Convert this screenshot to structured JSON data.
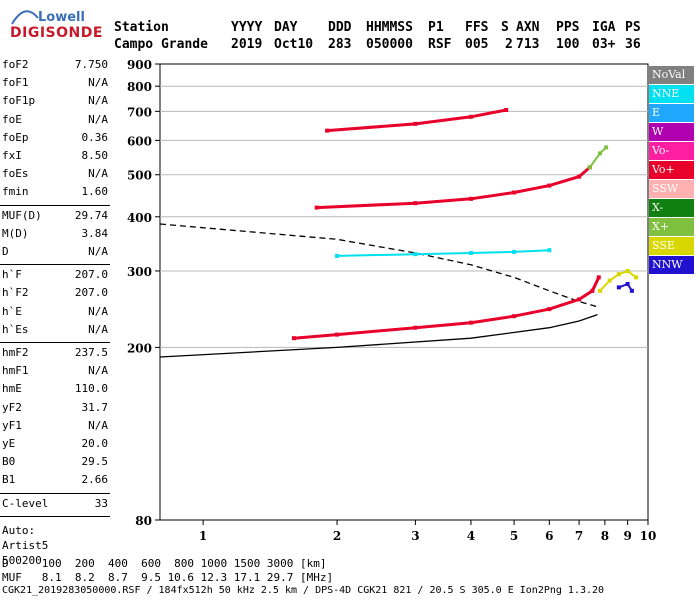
{
  "logo": {
    "line1": "Lowell",
    "line2": "DIGISONDE"
  },
  "header": {
    "row1": [
      "Station",
      "YYYY",
      "DAY",
      "DDD",
      "HHMMSS",
      "P1",
      "FFS",
      "S",
      "AXN",
      "PPS",
      "IGA",
      "PS"
    ],
    "row2": [
      "Campo Grande",
      "2019",
      "Oct10",
      "283",
      "050000",
      "RSF",
      "005",
      "2",
      "713",
      "100",
      "03+",
      "36"
    ]
  },
  "params": {
    "group1": [
      {
        "k": "foF2",
        "v": "7.750"
      },
      {
        "k": "foF1",
        "v": "N/A"
      },
      {
        "k": "foF1p",
        "v": "N/A"
      },
      {
        "k": "foE",
        "v": "N/A"
      },
      {
        "k": "foEp",
        "v": "0.36"
      },
      {
        "k": "fxI",
        "v": "8.50"
      },
      {
        "k": "foEs",
        "v": "N/A"
      },
      {
        "k": "fmin",
        "v": "1.60"
      }
    ],
    "group2": [
      {
        "k": "MUF(D)",
        "v": "29.74"
      },
      {
        "k": "M(D)",
        "v": "3.84"
      },
      {
        "k": "D",
        "v": "N/A"
      }
    ],
    "group3": [
      {
        "k": "h`F",
        "v": "207.0"
      },
      {
        "k": "h`F2",
        "v": "207.0"
      },
      {
        "k": "h`E",
        "v": "N/A"
      },
      {
        "k": "h`Es",
        "v": "N/A"
      }
    ],
    "group4": [
      {
        "k": "hmF2",
        "v": "237.5"
      },
      {
        "k": "hmF1",
        "v": "N/A"
      },
      {
        "k": "hmE",
        "v": "110.0"
      },
      {
        "k": "yF2",
        "v": "31.7"
      },
      {
        "k": "yF1",
        "v": "N/A"
      },
      {
        "k": "yE",
        "v": "20.0"
      },
      {
        "k": "B0",
        "v": "29.5"
      },
      {
        "k": "B1",
        "v": "2.66"
      }
    ],
    "group5": [
      {
        "k": "C-level",
        "v": "33"
      }
    ],
    "extra": [
      "Auto:",
      "Artist5",
      "500200"
    ]
  },
  "legend": [
    {
      "label": "NoVal",
      "color": "#808080"
    },
    {
      "label": "NNE",
      "color": "#00e0f0"
    },
    {
      "label": "E",
      "color": "#20a8ff"
    },
    {
      "label": "W",
      "color": "#b000b0"
    },
    {
      "label": "Vo-",
      "color": "#ff1fa0"
    },
    {
      "label": "Vo+",
      "color": "#e8002a"
    },
    {
      "label": "SSW",
      "color": "#ffb0b0"
    },
    {
      "label": "X-",
      "color": "#108010"
    },
    {
      "label": "X+",
      "color": "#80c040"
    },
    {
      "label": "SSE",
      "color": "#d8d800"
    },
    {
      "label": "NNW",
      "color": "#2010d0"
    }
  ],
  "bottom": {
    "d_row": "D     100  200  400  600  800 1000 1500 3000 [km]",
    "muf_row": "MUF   8.1  8.2  8.7  9.5 10.6 12.3 17.1 29.7 [MHz]",
    "footer": "CGK21_2019283050000.RSF / 184fx512h 50 kHz 2.5 km / DPS-4D CGK21 821 / 20.5 S 305.0 E Ion2Png 1.3.20"
  },
  "chart_data": {
    "type": "scatter",
    "xlim": [
      0.8,
      10
    ],
    "ylim": [
      80,
      900
    ],
    "x_ticks": [
      1,
      2,
      3,
      4,
      5,
      6,
      7,
      8,
      9,
      10
    ],
    "y_ticks": [
      80,
      200,
      300,
      400,
      500,
      600,
      700,
      800,
      900
    ],
    "y_scale": "log",
    "grid": "y-only",
    "legend_position": "right",
    "series": [
      {
        "name": "Vo+",
        "color": "#e8002a",
        "points": [
          [
            1.6,
            210
          ],
          [
            2,
            214
          ],
          [
            3,
            222
          ],
          [
            4,
            228
          ],
          [
            5,
            236
          ],
          [
            6,
            245
          ],
          [
            7,
            258
          ],
          [
            7.5,
            270
          ],
          [
            7.75,
            290
          ]
        ]
      },
      {
        "name": "Vo+",
        "color": "#e8002a",
        "points": [
          [
            1.8,
            420
          ],
          [
            3,
            430
          ],
          [
            4,
            440
          ],
          [
            5,
            455
          ],
          [
            6,
            472
          ],
          [
            7,
            495
          ],
          [
            7.4,
            520
          ]
        ]
      },
      {
        "name": "Vo+",
        "color": "#e8002a",
        "points": [
          [
            1.9,
            632
          ],
          [
            3,
            655
          ],
          [
            4,
            680
          ],
          [
            4.8,
            705
          ]
        ]
      },
      {
        "name": "X+",
        "color": "#80c040",
        "points": [
          [
            7.4,
            520
          ],
          [
            7.8,
            560
          ],
          [
            8.05,
            578
          ]
        ]
      },
      {
        "name": "NNE",
        "color": "#00e0f0",
        "points": [
          [
            2,
            325
          ],
          [
            3,
            328
          ],
          [
            4,
            330
          ],
          [
            5,
            332
          ],
          [
            6,
            335
          ]
        ]
      },
      {
        "name": "SSE",
        "color": "#d8d800",
        "points": [
          [
            7.8,
            270
          ],
          [
            8.2,
            285
          ],
          [
            8.6,
            295
          ],
          [
            9,
            300
          ],
          [
            9.4,
            290
          ]
        ]
      },
      {
        "name": "NNW",
        "color": "#2010d0",
        "points": [
          [
            8.6,
            275
          ],
          [
            9,
            280
          ],
          [
            9.2,
            270
          ]
        ]
      }
    ],
    "profile_lines": [
      {
        "style": "solid",
        "color": "#000000",
        "points": [
          [
            0.8,
            190
          ],
          [
            2,
            200
          ],
          [
            4,
            210
          ],
          [
            6,
            222
          ],
          [
            7,
            230
          ],
          [
            7.7,
            238
          ]
        ]
      },
      {
        "style": "dashed",
        "color": "#000000",
        "points": [
          [
            0.8,
            385
          ],
          [
            2,
            355
          ],
          [
            3,
            330
          ],
          [
            4,
            310
          ],
          [
            5,
            290
          ],
          [
            6,
            270
          ],
          [
            7,
            255
          ],
          [
            7.7,
            248
          ]
        ]
      }
    ]
  }
}
